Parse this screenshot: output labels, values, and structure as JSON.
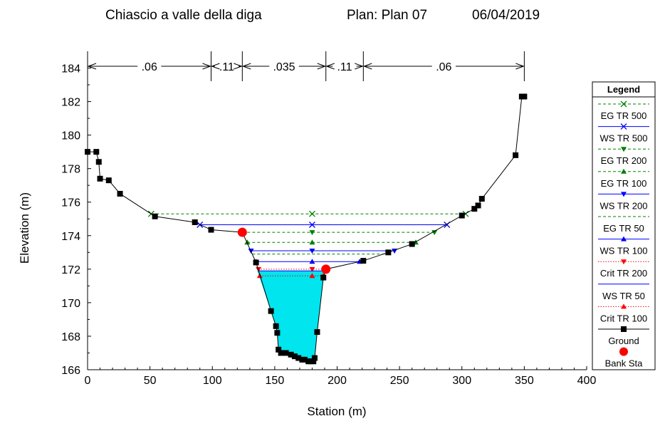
{
  "chart_data": {
    "type": "line",
    "title": "Chiascio a valle della diga",
    "plan_label": "Plan: Plan 07",
    "date": "06/04/2019",
    "xlabel": "Station (m)",
    "ylabel": "Elevation (m)",
    "xlim": [
      0,
      400
    ],
    "ylim": [
      166,
      185
    ],
    "x_ticks": [
      "0",
      "50",
      "100",
      "150",
      "200",
      "250",
      "300",
      "350",
      "400"
    ],
    "y_ticks": [
      "166",
      "168",
      "170",
      "172",
      "174",
      "176",
      "178",
      "180",
      "182",
      "184"
    ],
    "grid": false,
    "legend_title": "Legend",
    "legend_position": "right",
    "manning": [
      {
        "label": ".06",
        "from": 0,
        "to": 99
      },
      {
        "label": ".11",
        "from": 99,
        "to": 124
      },
      {
        "label": ".035",
        "from": 124,
        "to": 191
      },
      {
        "label": ".11",
        "from": 191,
        "to": 221
      },
      {
        "label": ".06",
        "from": 221,
        "to": 350
      }
    ],
    "ground": {
      "name": "Ground",
      "color": "#000000",
      "points": [
        [
          0,
          179
        ],
        [
          7,
          179
        ],
        [
          9,
          178.4
        ],
        [
          10,
          177.4
        ],
        [
          17,
          177.3
        ],
        [
          26,
          176.5
        ],
        [
          54,
          175.15
        ],
        [
          86,
          174.8
        ],
        [
          99,
          174.35
        ],
        [
          124,
          174.2
        ],
        [
          135,
          172.4
        ],
        [
          147,
          169.5
        ],
        [
          151,
          168.6
        ],
        [
          152,
          168.2
        ],
        [
          153,
          167.2
        ],
        [
          155,
          167
        ],
        [
          159,
          167
        ],
        [
          163,
          166.9
        ],
        [
          166,
          166.8
        ],
        [
          169,
          166.7
        ],
        [
          172,
          166.6
        ],
        [
          174,
          166.6
        ],
        [
          177,
          166.5
        ],
        [
          179,
          166.5
        ],
        [
          181,
          166.5
        ],
        [
          182,
          166.7
        ],
        [
          184,
          168.25
        ],
        [
          189,
          171.5
        ],
        [
          191,
          172
        ],
        [
          221,
          172.5
        ],
        [
          241,
          173
        ],
        [
          260,
          173.5
        ],
        [
          300,
          175.2
        ],
        [
          310,
          175.6
        ],
        [
          313,
          175.8
        ],
        [
          316,
          176.2
        ],
        [
          343,
          178.8
        ],
        [
          348,
          182.3
        ],
        [
          350,
          182.3
        ]
      ]
    },
    "bank_sta": {
      "name": "Bank Sta",
      "color": "#ff0000",
      "points": [
        [
          124,
          174.2
        ],
        [
          191,
          172
        ]
      ]
    },
    "water_area": {
      "color": "#00e5ee",
      "ws": 171.9,
      "left_x": 136,
      "right_x": 190.4
    },
    "profiles": [
      {
        "name": "EG TR 500",
        "color": "#008000",
        "dash": "dashed",
        "marker": "x",
        "y": 175.3,
        "x1": 51,
        "x2": 303,
        "mid": 180
      },
      {
        "name": "WS TR 500",
        "color": "#0000ff",
        "dash": "solid",
        "marker": "x",
        "y": 174.65,
        "x1": 90,
        "x2": 288,
        "mid": 180
      },
      {
        "name": "EG TR 200",
        "color": "#008000",
        "dash": "dashed",
        "marker": "tri-down",
        "y": 174.2,
        "x1": 124,
        "x2": 278,
        "mid": 180
      },
      {
        "name": "EG TR 100",
        "color": "#008000",
        "dash": "dashed",
        "marker": "tri-up",
        "y": 173.6,
        "x1": 128,
        "x2": 263,
        "mid": 180
      },
      {
        "name": "WS TR 200",
        "color": "#0000ff",
        "dash": "solid",
        "marker": "tri-down",
        "y": 173.1,
        "x1": 131,
        "x2": 246,
        "mid": 180
      },
      {
        "name": "EG TR 50",
        "color": "#008000",
        "dash": "dashed",
        "marker": "none",
        "y": 172.9,
        "x1": 132,
        "x2": 240,
        "mid": 180
      },
      {
        "name": "WS TR 100",
        "color": "#0000ff",
        "dash": "solid",
        "marker": "tri-up",
        "y": 172.45,
        "x1": 135,
        "x2": 218,
        "mid": 180
      },
      {
        "name": "Crit TR 200",
        "color": "#ff0000",
        "dash": "dotted",
        "marker": "tri-down",
        "y": 172,
        "x1": 137,
        "x2": 191,
        "mid": 180
      },
      {
        "name": "WS TR 50",
        "color": "#0000ff",
        "dash": "solid",
        "marker": "none",
        "y": 171.9,
        "x1": 137,
        "x2": 190,
        "mid": 180
      },
      {
        "name": "Crit TR 100",
        "color": "#ff0000",
        "dash": "dotted",
        "marker": "tri-up",
        "y": 171.6,
        "x1": 138,
        "x2": 189,
        "mid": 180
      }
    ]
  }
}
